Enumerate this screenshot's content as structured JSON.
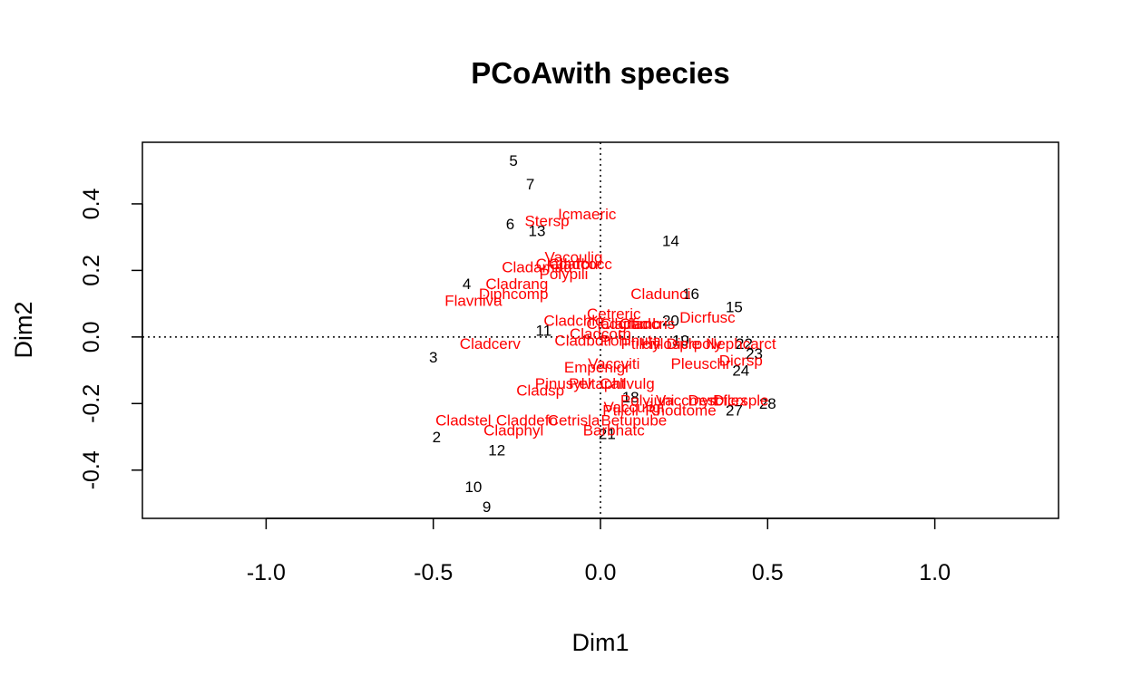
{
  "chart_data": {
    "type": "scatter",
    "title": "PCoAwith species",
    "xlabel": "Dim1",
    "ylabel": "Dim2",
    "xlim": [
      -1.37,
      1.37
    ],
    "ylim": [
      -0.545,
      0.585
    ],
    "xticks": [
      -1.0,
      -0.5,
      0.0,
      0.5,
      1.0
    ],
    "xtick_labels": [
      "-1.0",
      "-0.5",
      "0.0",
      "0.5",
      "1.0"
    ],
    "yticks": [
      -0.4,
      -0.2,
      0.0,
      0.2,
      0.4
    ],
    "ytick_labels": [
      "-0.4",
      "-0.2",
      "0.0",
      "0.2",
      "0.4"
    ],
    "reference_lines": {
      "x": 0,
      "y": 0,
      "style": "dotted"
    },
    "colors": {
      "sites": "#000000",
      "species": "#ff0000"
    },
    "sites": [
      {
        "label": "5",
        "x": -0.26,
        "y": 0.53
      },
      {
        "label": "7",
        "x": -0.21,
        "y": 0.46
      },
      {
        "label": "6",
        "x": -0.27,
        "y": 0.34
      },
      {
        "label": "13",
        "x": -0.19,
        "y": 0.32
      },
      {
        "label": "14",
        "x": 0.21,
        "y": 0.29
      },
      {
        "label": "4",
        "x": -0.4,
        "y": 0.16
      },
      {
        "label": "16",
        "x": 0.27,
        "y": 0.13
      },
      {
        "label": "15",
        "x": 0.4,
        "y": 0.09
      },
      {
        "label": "20",
        "x": 0.21,
        "y": 0.05
      },
      {
        "label": "11",
        "x": -0.17,
        "y": 0.02
      },
      {
        "label": "19",
        "x": 0.24,
        "y": -0.01
      },
      {
        "label": "22",
        "x": 0.43,
        "y": -0.02
      },
      {
        "label": "23",
        "x": 0.46,
        "y": -0.05
      },
      {
        "label": "3",
        "x": -0.5,
        "y": -0.06
      },
      {
        "label": "24",
        "x": 0.42,
        "y": -0.1
      },
      {
        "label": "18",
        "x": 0.09,
        "y": -0.18
      },
      {
        "label": "27",
        "x": 0.4,
        "y": -0.22
      },
      {
        "label": "28",
        "x": 0.5,
        "y": -0.2
      },
      {
        "label": "21",
        "x": 0.02,
        "y": -0.29
      },
      {
        "label": "2",
        "x": -0.49,
        "y": -0.3
      },
      {
        "label": "12",
        "x": -0.31,
        "y": -0.34
      },
      {
        "label": "10",
        "x": -0.38,
        "y": -0.45
      },
      {
        "label": "9",
        "x": -0.34,
        "y": -0.51
      }
    ],
    "species": [
      {
        "label": "Icmaeric",
        "x": -0.04,
        "y": 0.37
      },
      {
        "label": "Stersp",
        "x": -0.16,
        "y": 0.35
      },
      {
        "label": "Vacoulig",
        "x": -0.08,
        "y": 0.24
      },
      {
        "label": "Cladamau",
        "x": -0.19,
        "y": 0.21
      },
      {
        "label": "Cladarbu",
        "x": -0.1,
        "y": 0.22
      },
      {
        "label": "Cladcocc",
        "x": -0.06,
        "y": 0.22
      },
      {
        "label": "Polypili",
        "x": -0.11,
        "y": 0.19
      },
      {
        "label": "Cladrang",
        "x": -0.25,
        "y": 0.16
      },
      {
        "label": "Diphcomp",
        "x": -0.26,
        "y": 0.13
      },
      {
        "label": "Flavniva",
        "x": -0.38,
        "y": 0.11
      },
      {
        "label": "Cladunci",
        "x": 0.18,
        "y": 0.13
      },
      {
        "label": "Dicrfusc",
        "x": 0.32,
        "y": 0.06
      },
      {
        "label": "Cetreric",
        "x": 0.04,
        "y": 0.07
      },
      {
        "label": "Cladchlo",
        "x": -0.08,
        "y": 0.05
      },
      {
        "label": "Cladgrac",
        "x": 0.05,
        "y": 0.04
      },
      {
        "label": "Cladfimb",
        "x": 0.09,
        "y": 0.04
      },
      {
        "label": "Cladcris",
        "x": 0.14,
        "y": 0.04
      },
      {
        "label": "Cladcorn",
        "x": 0.0,
        "y": 0.01
      },
      {
        "label": "Cladcerv",
        "x": -0.33,
        "y": -0.02
      },
      {
        "label": "Cladbotr",
        "x": -0.05,
        "y": -0.01
      },
      {
        "label": "Pohlnuta",
        "x": 0.09,
        "y": -0.01
      },
      {
        "label": "Ptilcili",
        "x": 0.12,
        "y": -0.02
      },
      {
        "label": "Hylosple",
        "x": 0.21,
        "y": -0.02
      },
      {
        "label": "Dicrpoly",
        "x": 0.28,
        "y": -0.02
      },
      {
        "label": "Nephcarct",
        "x": 0.42,
        "y": -0.02
      },
      {
        "label": "Empenigr",
        "x": -0.01,
        "y": -0.09
      },
      {
        "label": "Vaccviti",
        "x": 0.04,
        "y": -0.08
      },
      {
        "label": "Dicrsp",
        "x": 0.42,
        "y": -0.07
      },
      {
        "label": "Pleuschr",
        "x": 0.3,
        "y": -0.08
      },
      {
        "label": "Pinusylv",
        "x": -0.11,
        "y": -0.14
      },
      {
        "label": "Cladsp",
        "x": -0.18,
        "y": -0.16
      },
      {
        "label": "Peltapht",
        "x": -0.01,
        "y": -0.14
      },
      {
        "label": "Callvulg",
        "x": 0.08,
        "y": -0.14
      },
      {
        "label": "Vaccmyrt",
        "x": 0.26,
        "y": -0.19
      },
      {
        "label": "Polyjuni",
        "x": 0.14,
        "y": -0.19
      },
      {
        "label": "Dicrsple",
        "x": 0.42,
        "y": -0.19
      },
      {
        "label": "Descflex",
        "x": 0.35,
        "y": -0.19
      },
      {
        "label": "Vacculigi",
        "x": 0.1,
        "y": -0.21
      },
      {
        "label": "Ptilcil",
        "x": 0.06,
        "y": -0.22
      },
      {
        "label": "Rhodtome",
        "x": 0.24,
        "y": -0.22
      },
      {
        "label": "Cladstel",
        "x": -0.41,
        "y": -0.25
      },
      {
        "label": "Claddefo",
        "x": -0.22,
        "y": -0.25
      },
      {
        "label": "Cetrisla",
        "x": -0.08,
        "y": -0.25
      },
      {
        "label": "Betupube",
        "x": 0.1,
        "y": -0.25
      },
      {
        "label": "Cladphyl",
        "x": -0.26,
        "y": -0.28
      },
      {
        "label": "Barbhatc",
        "x": 0.04,
        "y": -0.28
      }
    ]
  }
}
